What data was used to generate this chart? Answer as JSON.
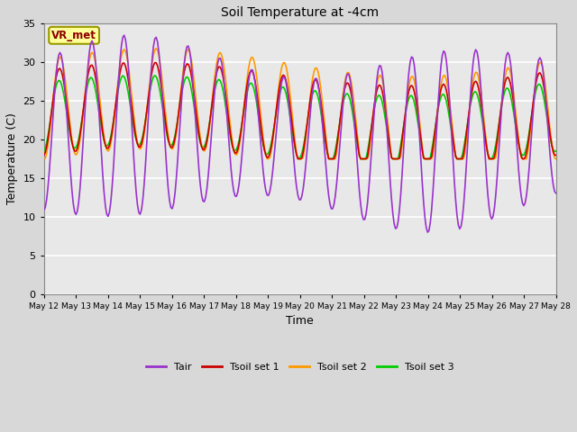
{
  "title": "Soil Temperature at -4cm",
  "xlabel": "Time",
  "ylabel": "Temperature (C)",
  "ylim": [
    0,
    35
  ],
  "yticks": [
    0,
    5,
    10,
    15,
    20,
    25,
    30,
    35
  ],
  "n_days": 16,
  "start_day": 12,
  "background_color": "#d8d8d8",
  "plot_bg_color": "#e8e8e8",
  "grid_color": "#ffffff",
  "annotation_text": "VR_met",
  "annotation_color": "#8B0000",
  "annotation_bg": "#ffff99",
  "annotation_edge": "#999900",
  "colors": {
    "Tair": "#9933cc",
    "Tsoil1": "#cc0000",
    "Tsoil2": "#ff9900",
    "Tsoil3": "#00cc00"
  },
  "legend_labels": [
    "Tair",
    "Tsoil set 1",
    "Tsoil set 2",
    "Tsoil set 3"
  ],
  "tair_min": 8.0,
  "tair_max": 33.5,
  "tair_base": 20.5,
  "tair_amp": 11.0,
  "tsoil_base": 23.0,
  "tsoil_amp_1": 5.5,
  "tsoil_amp_2": 6.5,
  "tsoil_amp_3": 4.5,
  "tsoil_min": 17.5,
  "pts_per_day": 24,
  "linewidth": 1.2
}
